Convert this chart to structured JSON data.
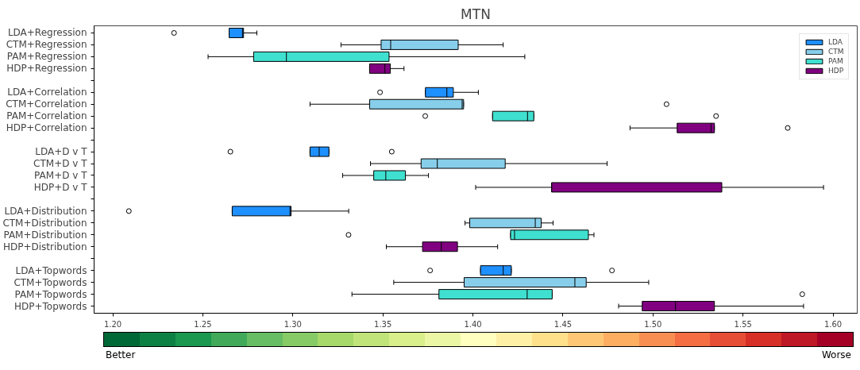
{
  "chart_data": {
    "type": "box",
    "title": "MTN",
    "orientation": "horizontal",
    "categories": [
      "LDA+Regression",
      "CTM+Regression",
      "PAM+Regression",
      "HDP+Regression",
      null,
      "LDA+Correlation",
      "CTM+Correlation",
      "PAM+Correlation",
      "HDP+Correlation",
      null,
      "LDA+D v T",
      "CTM+D v T",
      "PAM+D v T",
      "HDP+D v T",
      null,
      "LDA+Distribution",
      "CTM+Distribution",
      "PAM+Distribution",
      "HDP+Distribution",
      null,
      "LDA+Topwords",
      "CTM+Topwords",
      "PAM+Topwords",
      "HDP+Topwords"
    ],
    "series": [
      {
        "name": "LDA",
        "color": "#1e90ff",
        "boxes": [
          {
            "low": 1.2646,
            "q1": 1.2646,
            "median": 1.272,
            "q3": 1.2726,
            "high": 1.28,
            "outliers": [
              1.234
            ]
          },
          null,
          null,
          null,
          null,
          {
            "low": 1.3736,
            "q1": 1.3736,
            "median": 1.3855,
            "q3": 1.3891,
            "high": 1.403,
            "outliers": [
              1.3484
            ]
          },
          null,
          null,
          null,
          null,
          {
            "low": 1.3095,
            "q1": 1.3095,
            "median": 1.3146,
            "q3": 1.32,
            "high": 1.32,
            "outliers": [
              1.2653,
              1.3549
            ]
          },
          null,
          null,
          null,
          null,
          {
            "low": 1.2663,
            "q1": 1.2663,
            "median": 1.2984,
            "q3": 1.299,
            "high": 1.331,
            "outliers": [
              1.2089
            ]
          },
          null,
          null,
          null,
          null,
          {
            "low": 1.4042,
            "q1": 1.4042,
            "median": 1.4168,
            "q3": 1.4213,
            "high": 1.4213,
            "outliers": [
              1.3762,
              1.4772
            ]
          },
          null,
          null,
          null
        ]
      },
      {
        "name": "CTM",
        "color": "#87ceeb",
        "boxes": [
          null,
          {
            "low": 1.3267,
            "q1": 1.349,
            "median": 1.3543,
            "q3": 1.3918,
            "high": 1.4168
          },
          null,
          null,
          null,
          null,
          {
            "low": 1.3095,
            "q1": 1.3426,
            "median": 1.394,
            "q3": 1.3948,
            "high": 1.3948,
            "outliers": [
              1.5075
            ]
          },
          null,
          null,
          null,
          null,
          {
            "low": 1.3431,
            "q1": 1.3712,
            "median": 1.3802,
            "q3": 1.4179,
            "high": 1.4745
          },
          null,
          null,
          null,
          null,
          {
            "low": 1.3956,
            "q1": 1.3982,
            "median": 1.4346,
            "q3": 1.4379,
            "high": 1.4445
          },
          null,
          null,
          null,
          null,
          {
            "low": 1.356,
            "q1": 1.3951,
            "median": 1.4566,
            "q3": 1.4629,
            "high": 1.4976
          },
          null,
          null
        ]
      },
      {
        "name": "PAM",
        "color": "#40e0d0",
        "boxes": [
          null,
          null,
          {
            "low": 1.2529,
            "q1": 1.2782,
            "median": 1.2964,
            "q3": 1.3534,
            "high": 1.4288
          },
          null,
          null,
          null,
          null,
          {
            "low": 1.4109,
            "q1": 1.4109,
            "median": 1.4303,
            "q3": 1.4338,
            "high": 1.4338,
            "outliers": [
              1.3735,
              1.535
            ]
          },
          null,
          null,
          null,
          null,
          {
            "low": 1.3276,
            "q1": 1.3449,
            "median": 1.3516,
            "q3": 1.3625,
            "high": 1.3753
          },
          null,
          null,
          null,
          null,
          {
            "low": 1.4209,
            "q1": 1.4209,
            "median": 1.4231,
            "q3": 1.4641,
            "high": 1.4672,
            "outliers": [
              1.3309
            ]
          },
          null,
          null,
          null,
          null,
          {
            "low": 1.3328,
            "q1": 1.3811,
            "median": 1.4301,
            "q3": 1.444,
            "high": 1.444,
            "outliers": [
              1.5829
            ]
          },
          null
        ]
      },
      {
        "name": "HDP",
        "color": "#800080",
        "boxes": [
          null,
          null,
          null,
          {
            "low": 1.3426,
            "q1": 1.3426,
            "median": 1.3511,
            "q3": 1.3541,
            "high": 1.3617
          },
          null,
          null,
          null,
          null,
          {
            "low": 1.4872,
            "q1": 1.5134,
            "median": 1.5322,
            "q3": 1.5341,
            "high": 1.5341,
            "outliers": [
              1.5748
            ]
          },
          null,
          null,
          null,
          null,
          {
            "low": 1.4015,
            "q1": 1.4437,
            "median": 1.4437,
            "q3": 1.5382,
            "high": 1.5947
          },
          null,
          null,
          null,
          null,
          {
            "low": 1.3519,
            "q1": 1.372,
            "median": 1.3824,
            "q3": 1.3914,
            "high": 1.4137
          },
          null,
          null,
          null,
          null,
          {
            "low": 1.4809,
            "q1": 1.494,
            "median": 1.5125,
            "q3": 1.5341,
            "high": 1.5836
          }
        ]
      }
    ],
    "xlim": [
      1.1896,
      1.6134
    ],
    "xticks": [
      {
        "value": 1.2,
        "label": "1.20"
      },
      {
        "value": 1.25,
        "label": "1.25"
      },
      {
        "value": 1.3,
        "label": "1.30"
      },
      {
        "value": 1.35,
        "label": "1.35"
      },
      {
        "value": 1.4,
        "label": "1.40"
      },
      {
        "value": 1.45,
        "label": "1.45"
      },
      {
        "value": 1.5,
        "label": "1.50"
      },
      {
        "value": 1.55,
        "label": "1.55"
      },
      {
        "value": 1.6,
        "label": "1.60"
      }
    ],
    "legend": "top right",
    "annotations": [
      "Better",
      "Worse"
    ]
  }
}
